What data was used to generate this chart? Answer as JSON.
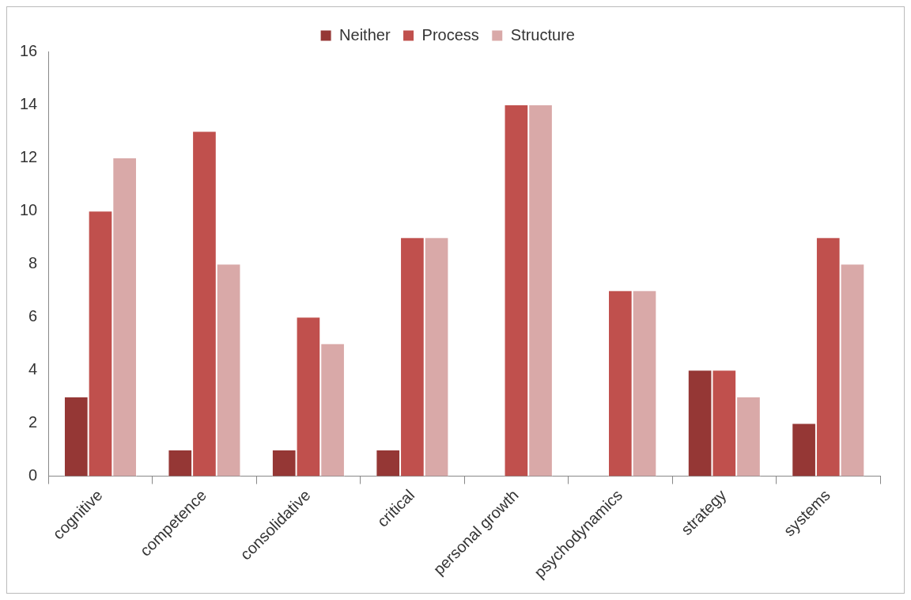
{
  "chart_data": {
    "type": "bar",
    "categories": [
      "cognitive",
      "competence",
      "consolidative",
      "critical",
      "personal growth",
      "psychodynamics",
      "strategy",
      "systems"
    ],
    "series": [
      {
        "name": "Neither",
        "color": "#953735",
        "values": [
          3,
          1,
          1,
          1,
          0,
          0,
          4,
          2
        ]
      },
      {
        "name": "Process",
        "color": "#c0504d",
        "values": [
          10,
          13,
          6,
          9,
          14,
          7,
          4,
          9
        ]
      },
      {
        "name": "Structure",
        "color": "#d9a9a8",
        "values": [
          12,
          8,
          5,
          9,
          14,
          7,
          3,
          8
        ]
      }
    ],
    "ylim": [
      0,
      16
    ],
    "yticks": [
      0,
      2,
      4,
      6,
      8,
      10,
      12,
      14,
      16
    ],
    "grid": false,
    "legend": "top"
  }
}
